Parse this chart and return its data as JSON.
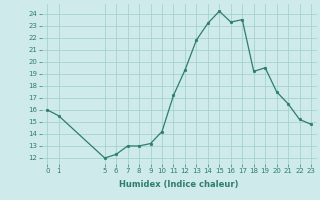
{
  "x": [
    0,
    1,
    5,
    6,
    7,
    8,
    9,
    10,
    11,
    12,
    13,
    14,
    15,
    16,
    17,
    18,
    19,
    20,
    21,
    22,
    23
  ],
  "y": [
    16.0,
    15.5,
    12.0,
    12.3,
    13.0,
    13.0,
    13.2,
    14.2,
    17.2,
    19.3,
    21.8,
    23.2,
    24.2,
    23.3,
    23.5,
    19.2,
    19.5,
    17.5,
    16.5,
    15.2,
    14.8
  ],
  "x_ticks": [
    0,
    1,
    5,
    6,
    7,
    8,
    9,
    10,
    11,
    12,
    13,
    14,
    15,
    16,
    17,
    18,
    19,
    20,
    21,
    22,
    23
  ],
  "y_ticks": [
    12,
    13,
    14,
    15,
    16,
    17,
    18,
    19,
    20,
    21,
    22,
    23,
    24
  ],
  "ylim": [
    11.5,
    24.8
  ],
  "xlim": [
    -0.5,
    23.5
  ],
  "xlabel": "Humidex (Indice chaleur)",
  "line_color": "#2e7d6e",
  "marker": "o",
  "marker_size": 1.8,
  "line_width": 0.9,
  "bg_color": "#ceeaea",
  "grid_color": "#9ecece",
  "tick_fontsize": 5.0,
  "xlabel_fontsize": 6.0
}
